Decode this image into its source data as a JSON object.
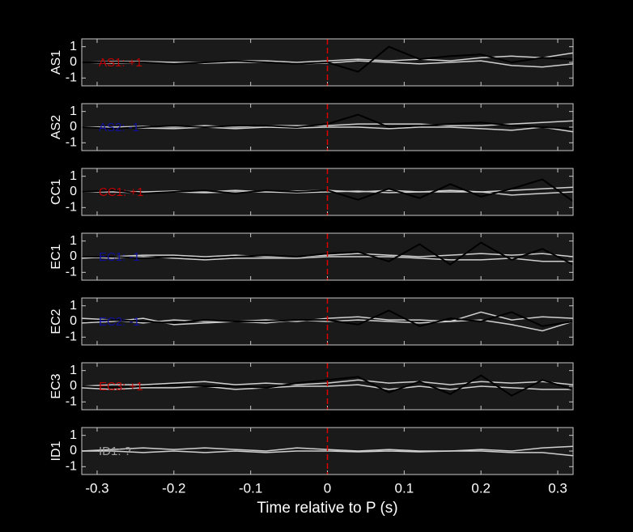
{
  "chart_data": [
    {
      "type": "line",
      "ylabel": "AS1",
      "annotation": "AS1: +1",
      "annotation_color": "#c00000",
      "x": [
        -0.32,
        -0.28,
        -0.24,
        -0.2,
        -0.16,
        -0.12,
        -0.08,
        -0.04,
        0,
        0.04,
        0.08,
        0.12,
        0.16,
        0.2,
        0.24,
        0.28,
        0.32
      ],
      "series": [
        {
          "color": "#d0d0d0",
          "values": [
            0,
            0.05,
            0.05,
            0,
            0,
            0.1,
            0.1,
            0,
            0.1,
            0.2,
            0.1,
            0.2,
            0.1,
            0.3,
            0.4,
            0.3,
            0.6
          ]
        },
        {
          "color": "#d0d0d0",
          "values": [
            0,
            -0.05,
            0,
            0,
            -0.05,
            0,
            0,
            -0.1,
            -0.05,
            0.1,
            0,
            -0.1,
            0,
            0.1,
            -0.2,
            -0.3,
            -0.1
          ]
        },
        {
          "color": "#000000",
          "values": [
            0,
            0,
            0,
            -0.1,
            0,
            0.1,
            0,
            -0.1,
            0,
            -0.6,
            1,
            0.2,
            0.4,
            0.5,
            0,
            0.3,
            0.2
          ]
        }
      ],
      "vline": {
        "x": 0,
        "color": "#dd0000"
      },
      "xlim": [
        -0.32,
        0.32
      ],
      "xticks": [
        -0.3,
        -0.2,
        -0.1,
        0,
        0.1,
        0.2,
        0.3
      ],
      "xtick_labels": false,
      "ylim": [
        -1.5,
        1.5
      ],
      "yticks": [
        -1,
        0,
        1
      ]
    },
    {
      "type": "line",
      "ylabel": "AS2",
      "annotation": "AS2: -1",
      "annotation_color": "#1010a0",
      "x": [
        -0.32,
        -0.28,
        -0.24,
        -0.2,
        -0.16,
        -0.12,
        -0.08,
        -0.04,
        0,
        0.04,
        0.08,
        0.12,
        0.16,
        0.2,
        0.24,
        0.28,
        0.32
      ],
      "series": [
        {
          "color": "#d0d0d0",
          "values": [
            0,
            0,
            0.05,
            0,
            0.1,
            0,
            0.1,
            0.1,
            0.1,
            0.2,
            0.2,
            0.2,
            0.1,
            0.1,
            0.2,
            0.3,
            0.4
          ]
        },
        {
          "color": "#d0d0d0",
          "values": [
            0,
            0,
            -0.05,
            -0.1,
            0,
            -0.1,
            0,
            -0.05,
            0,
            0,
            -0.1,
            0,
            0,
            -0.1,
            -0.2,
            0,
            -0.3
          ]
        },
        {
          "color": "#000000",
          "values": [
            0,
            -0.1,
            0,
            0.1,
            0,
            0.1,
            0.1,
            0,
            0.2,
            0.8,
            0,
            0.1,
            0.2,
            0.3,
            0.1,
            0,
            -0.1
          ]
        }
      ],
      "vline": {
        "x": 0,
        "color": "#dd0000"
      },
      "xlim": [
        -0.32,
        0.32
      ],
      "xticks": [
        -0.3,
        -0.2,
        -0.1,
        0,
        0.1,
        0.2,
        0.3
      ],
      "xtick_labels": false,
      "ylim": [
        -1.5,
        1.5
      ],
      "yticks": [
        -1,
        0,
        1
      ]
    },
    {
      "type": "line",
      "ylabel": "CC1",
      "annotation": "CC1: +1",
      "annotation_color": "#c00000",
      "x": [
        -0.32,
        -0.28,
        -0.24,
        -0.2,
        -0.16,
        -0.12,
        -0.08,
        -0.04,
        0,
        0.04,
        0.08,
        0.12,
        0.16,
        0.2,
        0.24,
        0.28,
        0.32
      ],
      "series": [
        {
          "color": "#d0d0d0",
          "values": [
            0,
            0.05,
            0,
            0.05,
            0,
            0.1,
            0,
            0.05,
            0.1,
            0,
            0.1,
            0,
            0.1,
            0,
            0.1,
            0.2,
            0.3
          ]
        },
        {
          "color": "#d0d0d0",
          "values": [
            0,
            0,
            -0.05,
            0,
            -0.05,
            0,
            0,
            -0.05,
            0,
            0.05,
            -0.05,
            0,
            0,
            0,
            -0.2,
            -0.1,
            0
          ]
        },
        {
          "color": "#000000",
          "values": [
            0,
            0.1,
            -0.1,
            0,
            0.1,
            -0.1,
            0.1,
            0,
            0.1,
            -0.5,
            0.2,
            -0.4,
            0.5,
            -0.3,
            0.2,
            0.8,
            -0.6
          ]
        }
      ],
      "vline": {
        "x": 0,
        "color": "#dd0000"
      },
      "xlim": [
        -0.32,
        0.32
      ],
      "xticks": [
        -0.3,
        -0.2,
        -0.1,
        0,
        0.1,
        0.2,
        0.3
      ],
      "xtick_labels": false,
      "ylim": [
        -1.5,
        1.5
      ],
      "yticks": [
        -1,
        0,
        1
      ]
    },
    {
      "type": "line",
      "ylabel": "EC1",
      "annotation": "EC1: -1",
      "annotation_color": "#1010a0",
      "x": [
        -0.32,
        -0.28,
        -0.24,
        -0.2,
        -0.16,
        -0.12,
        -0.08,
        -0.04,
        0,
        0.04,
        0.08,
        0.12,
        0.16,
        0.2,
        0.24,
        0.28,
        0.32
      ],
      "series": [
        {
          "color": "#d0d0d0",
          "values": [
            -0.1,
            0,
            0.1,
            0.1,
            0,
            0.1,
            0,
            0,
            0.1,
            0.2,
            0.1,
            0,
            0.1,
            0.2,
            0.1,
            0.2,
            0
          ]
        },
        {
          "color": "#d0d0d0",
          "values": [
            0,
            -0.1,
            0,
            -0.1,
            -0.2,
            -0.1,
            -0.1,
            -0.1,
            0,
            0,
            0,
            -0.1,
            -0.2,
            -0.2,
            -0.1,
            -0.3,
            -0.3
          ]
        },
        {
          "color": "#000000",
          "values": [
            0,
            0,
            -0.1,
            0,
            -0.1,
            0,
            0.1,
            0,
            0.2,
            0.3,
            -0.3,
            0.8,
            -0.5,
            0.9,
            -0.2,
            0.5,
            -0.5
          ]
        }
      ],
      "vline": {
        "x": 0,
        "color": "#dd0000"
      },
      "xlim": [
        -0.32,
        0.32
      ],
      "xticks": [
        -0.3,
        -0.2,
        -0.1,
        0,
        0.1,
        0.2,
        0.3
      ],
      "xtick_labels": false,
      "ylim": [
        -1.5,
        1.5
      ],
      "yticks": [
        -1,
        0,
        1
      ]
    },
    {
      "type": "line",
      "ylabel": "EC2",
      "annotation": "EC2: -1",
      "annotation_color": "#1010a0",
      "x": [
        -0.32,
        -0.28,
        -0.24,
        -0.2,
        -0.16,
        -0.12,
        -0.08,
        -0.04,
        0,
        0.04,
        0.08,
        0.12,
        0.16,
        0.2,
        0.24,
        0.28,
        0.32
      ],
      "series": [
        {
          "color": "#d0d0d0",
          "values": [
            0.2,
            0.1,
            -0.1,
            0.1,
            0,
            0,
            0.1,
            0,
            0.2,
            0.3,
            0.1,
            0.1,
            0,
            0.6,
            0.1,
            0.3,
            0.2
          ]
        },
        {
          "color": "#d0d0d0",
          "values": [
            -0.1,
            0,
            0.2,
            -0.2,
            -0.1,
            0,
            -0.1,
            0.1,
            0,
            0.1,
            0,
            -0.1,
            0,
            0.1,
            -0.2,
            -0.6,
            0
          ]
        },
        {
          "color": "#000000",
          "values": [
            0,
            0.1,
            0,
            -0.1,
            0.1,
            0,
            0,
            0.1,
            0.1,
            -0.2,
            0.7,
            -0.3,
            0.2,
            0,
            0.6,
            -0.3,
            0
          ]
        }
      ],
      "vline": {
        "x": 0,
        "color": "#dd0000"
      },
      "xlim": [
        -0.32,
        0.32
      ],
      "xticks": [
        -0.3,
        -0.2,
        -0.1,
        0,
        0.1,
        0.2,
        0.3
      ],
      "xtick_labels": false,
      "ylim": [
        -1.5,
        1.5
      ],
      "yticks": [
        -1,
        0,
        1
      ]
    },
    {
      "type": "line",
      "ylabel": "EC3",
      "annotation": "EC3: +1",
      "annotation_color": "#c00000",
      "x": [
        -0.32,
        -0.28,
        -0.24,
        -0.2,
        -0.16,
        -0.12,
        -0.08,
        -0.04,
        0,
        0.04,
        0.08,
        0.12,
        0.16,
        0.2,
        0.24,
        0.28,
        0.32
      ],
      "series": [
        {
          "color": "#d0d0d0",
          "values": [
            0,
            0.1,
            0.1,
            0.2,
            0.3,
            0.1,
            0.2,
            0.1,
            0.2,
            0.4,
            0.2,
            0.3,
            0.1,
            0.3,
            0.2,
            0.3,
            0.1
          ]
        },
        {
          "color": "#d0d0d0",
          "values": [
            -0.1,
            -0.2,
            -0.1,
            -0.1,
            0,
            -0.2,
            -0.1,
            0,
            0,
            0.1,
            -0.2,
            0,
            -0.2,
            0,
            -0.1,
            -0.2,
            -0.2
          ]
        },
        {
          "color": "#000000",
          "values": [
            0,
            -0.1,
            0,
            0.1,
            0,
            0,
            -0.1,
            0.2,
            0.4,
            0.6,
            -0.4,
            0.3,
            -0.5,
            0.7,
            -0.6,
            0.4,
            -0.2
          ]
        }
      ],
      "vline": {
        "x": 0,
        "color": "#dd0000"
      },
      "xlim": [
        -0.32,
        0.32
      ],
      "xticks": [
        -0.3,
        -0.2,
        -0.1,
        0,
        0.1,
        0.2,
        0.3
      ],
      "xtick_labels": false,
      "ylim": [
        -1.5,
        1.5
      ],
      "yticks": [
        -1,
        0,
        1
      ]
    },
    {
      "type": "line",
      "ylabel": "ID1",
      "annotation": "ID1: ?",
      "annotation_color": "#a0a0a0",
      "x": [
        -0.32,
        -0.28,
        -0.24,
        -0.2,
        -0.16,
        -0.12,
        -0.08,
        -0.04,
        0,
        0.04,
        0.08,
        0.12,
        0.16,
        0.2,
        0.24,
        0.28,
        0.32
      ],
      "series": [
        {
          "color": "#d0d0d0",
          "values": [
            0,
            0.1,
            0.2,
            0.1,
            0.2,
            0.1,
            0,
            0.2,
            0.1,
            0,
            0.1,
            0,
            0,
            0.1,
            0,
            0.2,
            0.3
          ]
        },
        {
          "color": "#d0d0d0",
          "values": [
            0,
            0,
            -0.1,
            0,
            -0.1,
            0,
            -0.1,
            0,
            0,
            -0.05,
            0,
            -0.05,
            0,
            0,
            -0.1,
            -0.1,
            -0.3
          ]
        }
      ],
      "vline": {
        "x": 0,
        "color": "#dd0000"
      },
      "xlabel": "Time relative to P (s)",
      "xlim": [
        -0.32,
        0.32
      ],
      "xticks": [
        -0.3,
        -0.2,
        -0.1,
        0,
        0.1,
        0.2,
        0.3
      ],
      "xtick_labels": true,
      "ylim": [
        -1.5,
        1.5
      ],
      "yticks": [
        -1,
        0,
        1
      ]
    }
  ]
}
